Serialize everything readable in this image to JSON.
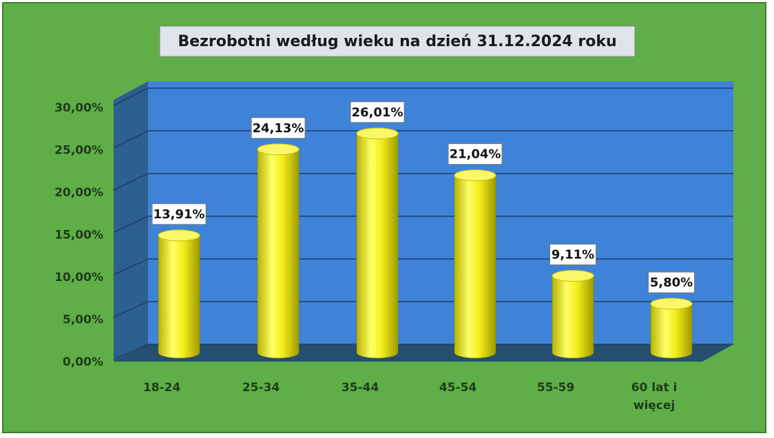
{
  "chart_data": {
    "type": "bar3d",
    "title": "Bezrobotni według wieku na dzień 31.12.2024 roku",
    "categories": [
      "18-24",
      "25-34",
      "35-44",
      "45-54",
      "55-59",
      "60 lat i więcej"
    ],
    "values": [
      13.91,
      24.13,
      26.01,
      21.04,
      9.11,
      5.8
    ],
    "value_labels": [
      "13,91%",
      "24,13%",
      "26,01%",
      "21,04%",
      "9,11%",
      "5,80%"
    ],
    "color": "#f2ee1c",
    "ylim": [
      0,
      30
    ],
    "yticks": [
      {
        "value": 0,
        "label": "0,00%"
      },
      {
        "value": 5,
        "label": "5,00%"
      },
      {
        "value": 10,
        "label": "10,00%"
      },
      {
        "value": 15,
        "label": "15,00%"
      },
      {
        "value": 20,
        "label": "20,00%"
      },
      {
        "value": 25,
        "label": "25,00%"
      },
      {
        "value": 30,
        "label": "30,00%"
      }
    ],
    "grid": true
  }
}
